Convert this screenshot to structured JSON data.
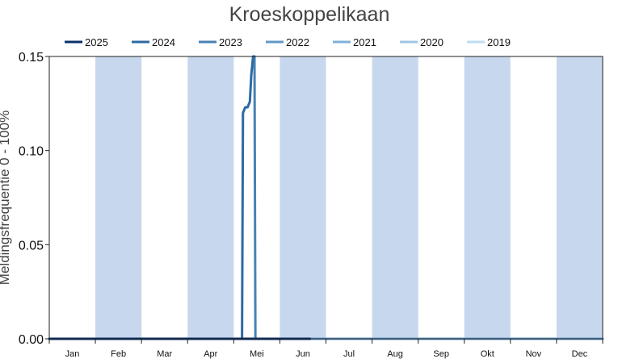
{
  "chart_data": {
    "type": "line",
    "title": "Kroeskoppelikaan",
    "xlabel": "",
    "ylabel": "Meldingsfrequentie 0 - 100%",
    "ylim": [
      0,
      0.15
    ],
    "yticks": [
      "0.00",
      "0.05",
      "0.10",
      "0.15"
    ],
    "ytick_values": [
      0,
      0.05,
      0.1,
      0.15
    ],
    "xlim": [
      0,
      12
    ],
    "months": [
      "Jan",
      "Feb",
      "Mar",
      "Apr",
      "Mei",
      "Jun",
      "Jul",
      "Aug",
      "Sep",
      "Okt",
      "Nov",
      "Dec"
    ],
    "grid": false,
    "legend_position": "top",
    "band_color": "#c6d7ee",
    "series": [
      {
        "name": "2025",
        "color": "#08306b",
        "x": [
          0,
          5.65
        ],
        "y": [
          0,
          0
        ]
      },
      {
        "name": "2024",
        "color": "#2c6aa3",
        "x": [
          4.18,
          4.2,
          4.25,
          4.3,
          4.35,
          4.38,
          4.42,
          4.45
        ],
        "y": [
          0,
          0.12,
          0.123,
          0.123,
          0.126,
          0.14,
          0.15,
          0.15
        ]
      },
      {
        "name": "2023",
        "color": "#4682b4",
        "x": [
          4.45,
          4.47
        ],
        "y": [
          0.15,
          0
        ]
      },
      {
        "name": "2022",
        "color": "#6199c8",
        "x": [
          4.47,
          12
        ],
        "y": [
          0,
          0
        ]
      },
      {
        "name": "2021",
        "color": "#7fb0d9",
        "x": [
          0,
          12
        ],
        "y": [
          0,
          0
        ]
      },
      {
        "name": "2020",
        "color": "#9fc6e6",
        "x": [
          0,
          12
        ],
        "y": [
          0,
          0
        ]
      },
      {
        "name": "2019",
        "color": "#bfdcf2",
        "x": [
          0,
          12
        ],
        "y": [
          0,
          0
        ]
      }
    ]
  }
}
